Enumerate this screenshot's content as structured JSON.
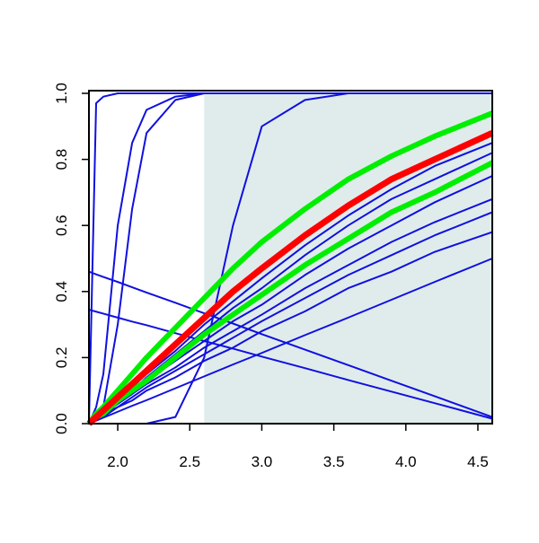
{
  "chart_data": {
    "type": "line",
    "x": [
      1.8,
      1.85,
      1.9,
      2.0,
      2.1,
      2.2,
      2.4,
      2.6,
      2.8,
      3.0,
      3.3,
      3.6,
      3.9,
      4.2,
      4.6
    ],
    "xlim": [
      1.8,
      4.6
    ],
    "ylim": [
      0,
      1
    ],
    "xticks": [
      {
        "value": 2,
        "label": "2.0"
      },
      {
        "value": 2.5,
        "label": "2.5"
      },
      {
        "value": 3,
        "label": "3.0"
      },
      {
        "value": 3.5,
        "label": "3.5"
      },
      {
        "value": 4,
        "label": "4.0"
      },
      {
        "value": 4.5,
        "label": "4.5"
      }
    ],
    "yticks": [
      {
        "value": 0,
        "label": "0.0"
      },
      {
        "value": 0.2,
        "label": "0.2"
      },
      {
        "value": 0.4,
        "label": "0.4"
      },
      {
        "value": 0.6,
        "label": "0.6"
      },
      {
        "value": 0.8,
        "label": "0.8"
      },
      {
        "value": 1,
        "label": "1.0"
      }
    ],
    "shade": {
      "x": [
        2.6,
        4.6
      ],
      "color": "#e0ecec"
    },
    "series": [
      {
        "color": "#1010e0",
        "linewidth": 2,
        "values": [
          0,
          0.009,
          0.018,
          0.036,
          0.054,
          0.071,
          0.107,
          0.143,
          0.179,
          0.214,
          0.268,
          0.321,
          0.375,
          0.429,
          0.5
        ]
      },
      {
        "color": "#1010e0",
        "linewidth": 2,
        "values": [
          0.46,
          0.452,
          0.444,
          0.429,
          0.413,
          0.397,
          0.366,
          0.334,
          0.303,
          0.271,
          0.224,
          0.177,
          0.13,
          0.083,
          0.02
        ]
      },
      {
        "color": "#1010e0",
        "linewidth": 2,
        "values": [
          0.345,
          0.339,
          0.333,
          0.321,
          0.309,
          0.298,
          0.274,
          0.25,
          0.227,
          0.203,
          0.168,
          0.132,
          0.097,
          0.062,
          0.015
        ]
      },
      {
        "color": "#1010e0",
        "linewidth": 2,
        "values": [
          0,
          0.97,
          0.99,
          1,
          1,
          1,
          1,
          1,
          1,
          1,
          1,
          1,
          1,
          1,
          1
        ]
      },
      {
        "color": "#1010e0",
        "linewidth": 2,
        "values": [
          0,
          0.05,
          0.15,
          0.6,
          0.85,
          0.95,
          0.99,
          1,
          1,
          1,
          1,
          1,
          1,
          1,
          1
        ]
      },
      {
        "color": "#1010e0",
        "linewidth": 2,
        "values": [
          0,
          0.02,
          0.05,
          0.3,
          0.65,
          0.88,
          0.98,
          1,
          1,
          1,
          1,
          1,
          1,
          1,
          1
        ]
      },
      {
        "color": "#1010e0",
        "linewidth": 2,
        "values": [
          0,
          0,
          0,
          0,
          0,
          0,
          0.02,
          0.2,
          0.6,
          0.9,
          0.98,
          1,
          1,
          1,
          1
        ]
      },
      {
        "color": "#1010e0",
        "linewidth": 2,
        "values": [
          0,
          0.02,
          0.04,
          0.08,
          0.11,
          0.15,
          0.22,
          0.3,
          0.37,
          0.44,
          0.54,
          0.63,
          0.71,
          0.78,
          0.85
        ]
      },
      {
        "color": "#1010e0",
        "linewidth": 2,
        "values": [
          0,
          0.02,
          0.03,
          0.07,
          0.1,
          0.14,
          0.21,
          0.28,
          0.35,
          0.41,
          0.51,
          0.6,
          0.68,
          0.74,
          0.82
        ]
      },
      {
        "color": "#1010e0",
        "linewidth": 2,
        "values": [
          0,
          0.02,
          0.03,
          0.06,
          0.09,
          0.13,
          0.19,
          0.25,
          0.31,
          0.36,
          0.45,
          0.53,
          0.6,
          0.67,
          0.75
        ]
      },
      {
        "color": "#1010e0",
        "linewidth": 2,
        "values": [
          0,
          0.01,
          0.03,
          0.06,
          0.09,
          0.12,
          0.17,
          0.23,
          0.28,
          0.33,
          0.41,
          0.48,
          0.55,
          0.61,
          0.68
        ]
      },
      {
        "color": "#1010e0",
        "linewidth": 2,
        "values": [
          0,
          0.01,
          0.03,
          0.05,
          0.08,
          0.11,
          0.16,
          0.21,
          0.26,
          0.31,
          0.38,
          0.45,
          0.51,
          0.57,
          0.64
        ]
      },
      {
        "color": "#1010e0",
        "linewidth": 2,
        "values": [
          0,
          0.01,
          0.02,
          0.05,
          0.07,
          0.1,
          0.14,
          0.19,
          0.23,
          0.28,
          0.34,
          0.41,
          0.46,
          0.52,
          0.58
        ]
      },
      {
        "color": "#00ee00",
        "linewidth": 6,
        "values": [
          0,
          0.03,
          0.05,
          0.1,
          0.15,
          0.2,
          0.29,
          0.38,
          0.47,
          0.55,
          0.65,
          0.74,
          0.81,
          0.87,
          0.94
        ]
      },
      {
        "color": "#00ee00",
        "linewidth": 6,
        "values": [
          0,
          0.02,
          0.03,
          0.07,
          0.1,
          0.13,
          0.2,
          0.27,
          0.33,
          0.39,
          0.48,
          0.56,
          0.64,
          0.7,
          0.79
        ]
      },
      {
        "color": "#ff0000",
        "linewidth": 7,
        "values": [
          0,
          0.02,
          0.04,
          0.08,
          0.12,
          0.16,
          0.24,
          0.32,
          0.4,
          0.47,
          0.57,
          0.66,
          0.74,
          0.8,
          0.88
        ]
      }
    ]
  }
}
